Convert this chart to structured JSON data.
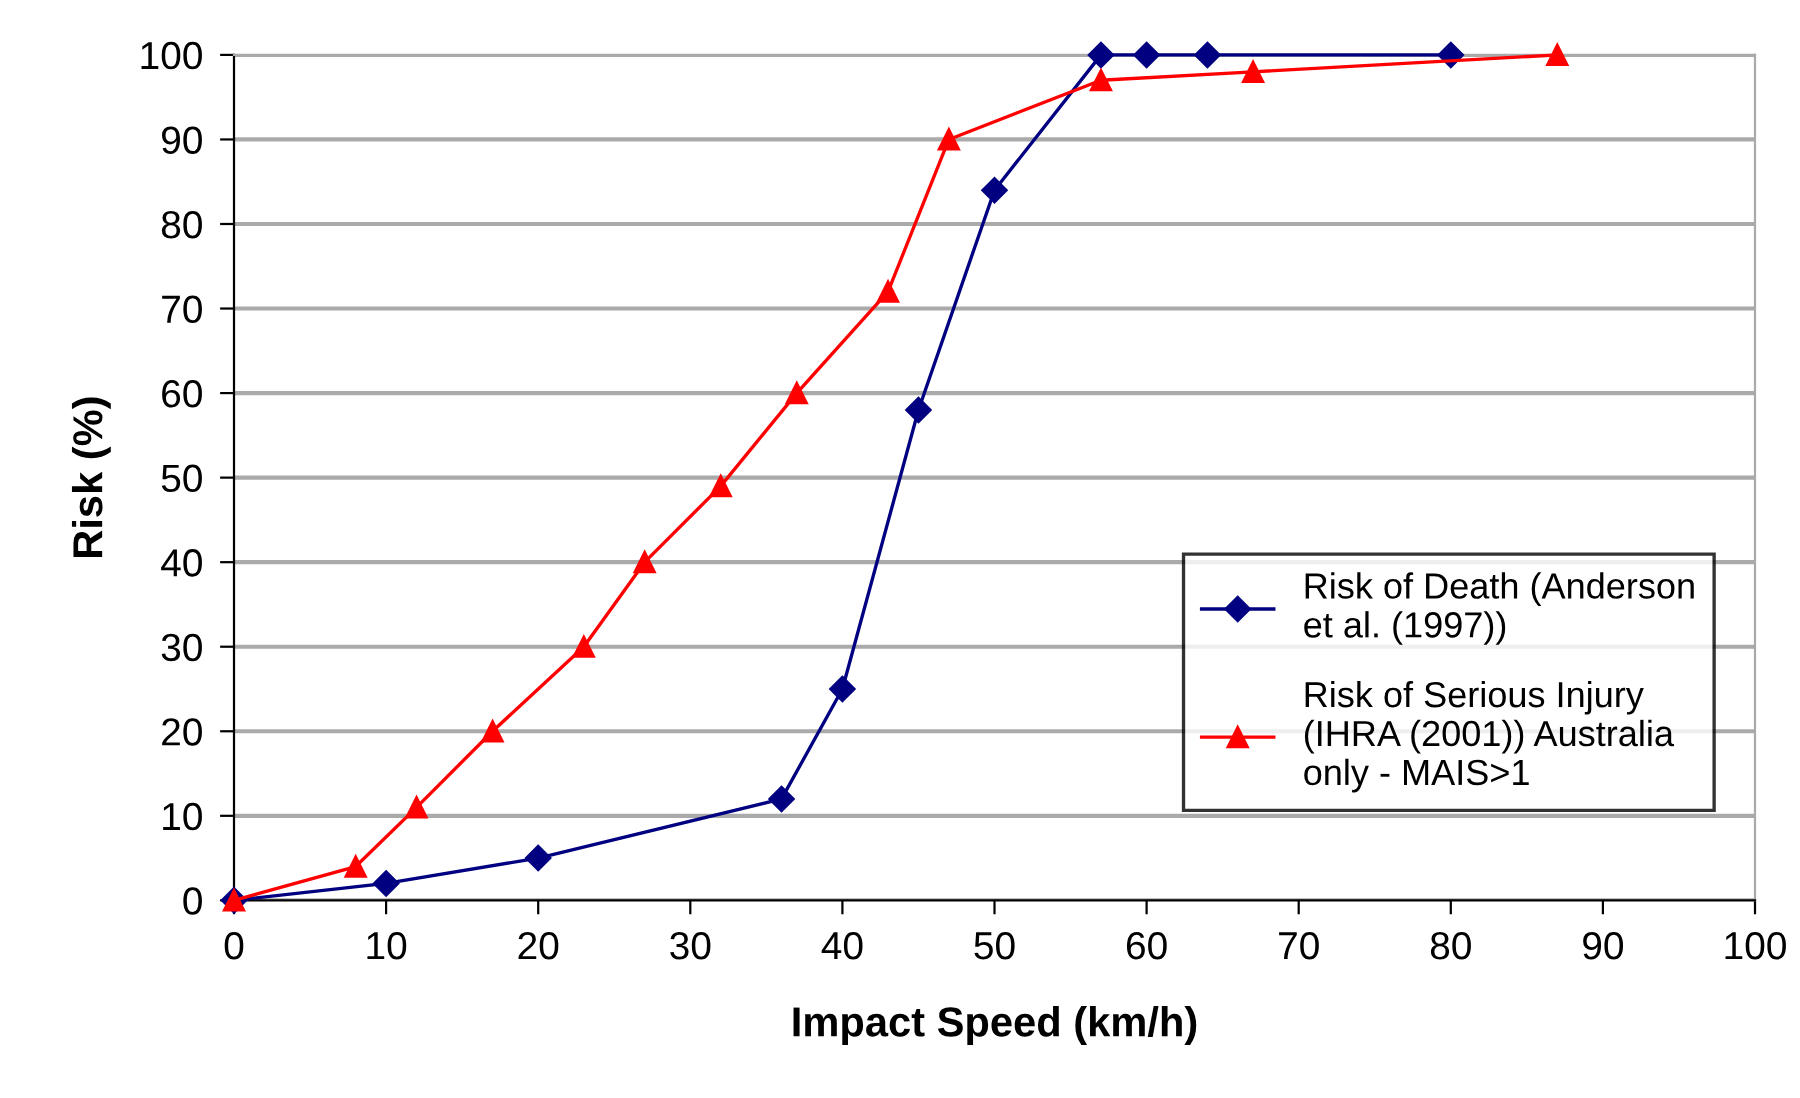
{
  "chart_data": {
    "type": "line",
    "xlabel": "Impact Speed (km/h)",
    "ylabel": "Risk (%)",
    "xlim": [
      0,
      100
    ],
    "xticks": [
      0,
      10,
      20,
      30,
      40,
      50,
      60,
      70,
      80,
      90,
      100
    ],
    "ylim": [
      0,
      100
    ],
    "yticks": [
      0,
      10,
      20,
      30,
      40,
      50,
      60,
      70,
      80,
      90,
      100
    ],
    "grid": "y",
    "legend": "lower right",
    "series": [
      {
        "name": "Risk of Death (Anderson\net al. (1997))",
        "color": "#000080",
        "marker": "diamond",
        "x": [
          0,
          10,
          20,
          36,
          40,
          45,
          50,
          57,
          60,
          64,
          80
        ],
        "values": [
          0,
          2,
          5,
          12,
          25,
          58,
          84,
          100,
          100,
          100,
          100
        ]
      },
      {
        "name": "Risk of Serious Injury\n(IHRA (2001)) Australia\nonly - MAIS>1",
        "color": "#ff0000",
        "marker": "triangle",
        "x": [
          0,
          8,
          12,
          17,
          23,
          27,
          32,
          37,
          43,
          47,
          57,
          67,
          87
        ],
        "values": [
          0,
          4,
          11,
          20,
          30,
          40,
          49,
          60,
          72,
          90,
          97,
          98,
          100
        ]
      }
    ]
  }
}
